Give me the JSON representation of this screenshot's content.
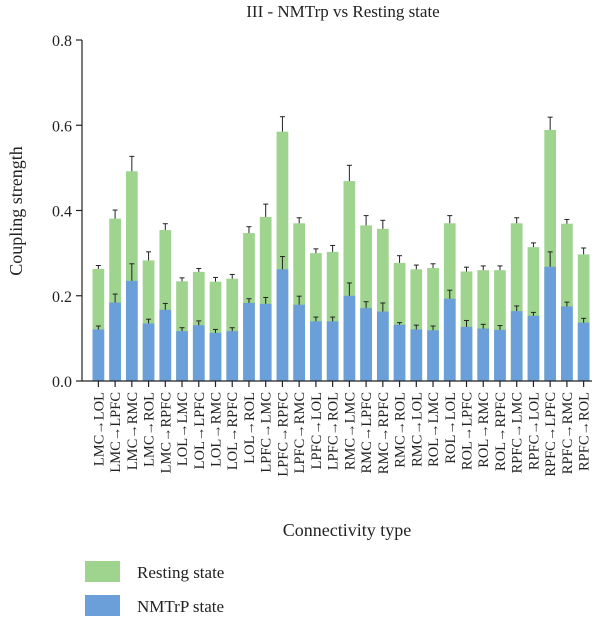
{
  "chart_data": {
    "type": "bar",
    "stacking": "overlay",
    "title": "III - NMTrp vs Resting state",
    "xlabel": "Connectivity type",
    "ylabel": "Coupling strength",
    "ylim": [
      0,
      0.8
    ],
    "yticks": [
      "0.0",
      "0.2",
      "0.4",
      "0.6",
      "0.8"
    ],
    "ytick_values": [
      0,
      0.2,
      0.4,
      0.6,
      0.8
    ],
    "legend_position": "bottom-left",
    "categories": [
      "LMC→LOL",
      "LMC→LPFC",
      "LMC→RMC",
      "LMC→ROL",
      "LMC→RPFC",
      "LOL→LMC",
      "LOL→LPFC",
      "LOL→RMC",
      "LOL→RPFC",
      "LOL→ROL",
      "LPFC→LMC",
      "LPFC→RPFC",
      "LPFC→RMC",
      "LPFC→LOL",
      "LPFC→ROL",
      "RMC→LMC",
      "RMC→LPFC",
      "RMC→RPFC",
      "RMC→ROL",
      "RMC→LOL",
      "ROL→LMC",
      "ROL→LOL",
      "ROL→LPFC",
      "ROL→RMC",
      "ROL→RPFC",
      "RPFC→LMC",
      "RPFC→LOL",
      "RPFC→LPFC",
      "RPFC→RMC",
      "RPFC→ROL"
    ],
    "series": [
      {
        "name": "Resting state",
        "color": "#9fd48f",
        "values": [
          0.263,
          0.381,
          0.492,
          0.283,
          0.354,
          0.234,
          0.256,
          0.233,
          0.24,
          0.347,
          0.385,
          0.585,
          0.37,
          0.3,
          0.303,
          0.469,
          0.365,
          0.357,
          0.277,
          0.262,
          0.265,
          0.37,
          0.257,
          0.26,
          0.26,
          0.37,
          0.314,
          0.589,
          0.369,
          0.297
        ],
        "errors": [
          0.008,
          0.02,
          0.035,
          0.02,
          0.015,
          0.008,
          0.008,
          0.01,
          0.01,
          0.015,
          0.03,
          0.035,
          0.013,
          0.01,
          0.015,
          0.037,
          0.023,
          0.02,
          0.017,
          0.01,
          0.01,
          0.018,
          0.01,
          0.01,
          0.01,
          0.013,
          0.01,
          0.03,
          0.01,
          0.015
        ]
      },
      {
        "name": "NMTrP state",
        "color": "#6a9fda",
        "values": [
          0.121,
          0.184,
          0.235,
          0.135,
          0.167,
          0.117,
          0.131,
          0.113,
          0.117,
          0.183,
          0.181,
          0.262,
          0.179,
          0.14,
          0.14,
          0.2,
          0.171,
          0.163,
          0.132,
          0.121,
          0.119,
          0.193,
          0.127,
          0.123,
          0.12,
          0.164,
          0.153,
          0.268,
          0.175,
          0.137
        ],
        "errors": [
          0.008,
          0.02,
          0.04,
          0.01,
          0.015,
          0.008,
          0.01,
          0.008,
          0.008,
          0.01,
          0.015,
          0.03,
          0.02,
          0.01,
          0.01,
          0.03,
          0.015,
          0.02,
          0.005,
          0.01,
          0.01,
          0.02,
          0.015,
          0.01,
          0.01,
          0.012,
          0.008,
          0.035,
          0.01,
          0.01
        ]
      }
    ]
  }
}
